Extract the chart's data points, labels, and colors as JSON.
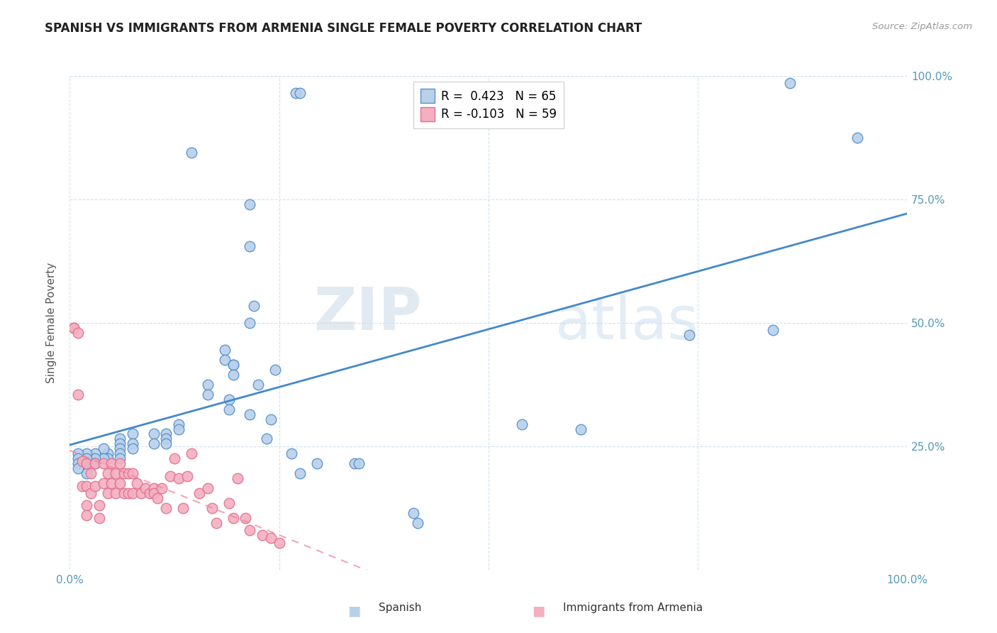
{
  "title": "SPANISH VS IMMIGRANTS FROM ARMENIA SINGLE FEMALE POVERTY CORRELATION CHART",
  "source": "Source: ZipAtlas.com",
  "ylabel": "Single Female Poverty",
  "xlim": [
    0,
    1
  ],
  "ylim": [
    0,
    1
  ],
  "xticks": [
    0,
    0.25,
    0.5,
    0.75,
    1.0
  ],
  "xticklabels": [
    "0.0%",
    "",
    "",
    "",
    "100.0%"
  ],
  "ytick_positions": [
    0,
    0.25,
    0.5,
    0.75,
    1.0
  ],
  "yticklabels_right": [
    "",
    "25.0%",
    "50.0%",
    "75.0%",
    "100.0%"
  ],
  "spanish_R": 0.423,
  "spanish_N": 65,
  "armenia_R": -0.103,
  "armenia_N": 59,
  "spanish_color": "#b8d0ea",
  "armenia_color": "#f4afc0",
  "spanish_edge_color": "#5590cc",
  "armenia_edge_color": "#e07090",
  "spanish_line_color": "#4488cc",
  "armenia_line_color": "#ee8099",
  "watermark_zip": "ZIP",
  "watermark_atlas": "atlas",
  "spanish_x": [
    0.27,
    0.275,
    0.145,
    0.215,
    0.215,
    0.22,
    0.215,
    0.185,
    0.185,
    0.195,
    0.195,
    0.195,
    0.165,
    0.165,
    0.19,
    0.19,
    0.215,
    0.24,
    0.245,
    0.13,
    0.13,
    0.115,
    0.115,
    0.115,
    0.1,
    0.1,
    0.075,
    0.075,
    0.075,
    0.06,
    0.06,
    0.06,
    0.06,
    0.06,
    0.045,
    0.045,
    0.04,
    0.04,
    0.03,
    0.03,
    0.03,
    0.02,
    0.02,
    0.02,
    0.02,
    0.02,
    0.01,
    0.01,
    0.01,
    0.01,
    0.34,
    0.345,
    0.41,
    0.415,
    0.54,
    0.61,
    0.74,
    0.84,
    0.86,
    0.225,
    0.235,
    0.265,
    0.295,
    0.275,
    0.94
  ],
  "spanish_y": [
    0.965,
    0.965,
    0.845,
    0.74,
    0.655,
    0.535,
    0.5,
    0.445,
    0.425,
    0.415,
    0.415,
    0.395,
    0.375,
    0.355,
    0.345,
    0.325,
    0.315,
    0.305,
    0.405,
    0.295,
    0.285,
    0.275,
    0.265,
    0.255,
    0.275,
    0.255,
    0.275,
    0.255,
    0.245,
    0.265,
    0.255,
    0.245,
    0.235,
    0.225,
    0.235,
    0.225,
    0.245,
    0.225,
    0.235,
    0.225,
    0.215,
    0.235,
    0.225,
    0.215,
    0.205,
    0.195,
    0.235,
    0.225,
    0.215,
    0.205,
    0.215,
    0.215,
    0.115,
    0.095,
    0.295,
    0.285,
    0.475,
    0.485,
    0.985,
    0.375,
    0.265,
    0.235,
    0.215,
    0.195,
    0.875
  ],
  "armenia_x": [
    0.005,
    0.005,
    0.01,
    0.01,
    0.015,
    0.015,
    0.02,
    0.02,
    0.02,
    0.02,
    0.025,
    0.025,
    0.03,
    0.03,
    0.035,
    0.035,
    0.04,
    0.04,
    0.045,
    0.045,
    0.05,
    0.05,
    0.055,
    0.055,
    0.06,
    0.06,
    0.065,
    0.065,
    0.07,
    0.07,
    0.075,
    0.075,
    0.08,
    0.085,
    0.09,
    0.095,
    0.1,
    0.1,
    0.105,
    0.11,
    0.115,
    0.12,
    0.125,
    0.13,
    0.135,
    0.14,
    0.145,
    0.155,
    0.165,
    0.17,
    0.175,
    0.19,
    0.195,
    0.2,
    0.21,
    0.215,
    0.23,
    0.24,
    0.25
  ],
  "armenia_y": [
    0.49,
    0.49,
    0.48,
    0.355,
    0.22,
    0.17,
    0.215,
    0.17,
    0.13,
    0.11,
    0.195,
    0.155,
    0.215,
    0.17,
    0.13,
    0.105,
    0.215,
    0.175,
    0.195,
    0.155,
    0.215,
    0.175,
    0.195,
    0.155,
    0.215,
    0.175,
    0.195,
    0.155,
    0.195,
    0.155,
    0.195,
    0.155,
    0.175,
    0.155,
    0.165,
    0.155,
    0.165,
    0.155,
    0.145,
    0.165,
    0.125,
    0.19,
    0.225,
    0.185,
    0.125,
    0.19,
    0.235,
    0.155,
    0.165,
    0.125,
    0.095,
    0.135,
    0.105,
    0.185,
    0.105,
    0.08,
    0.07,
    0.065,
    0.055
  ]
}
